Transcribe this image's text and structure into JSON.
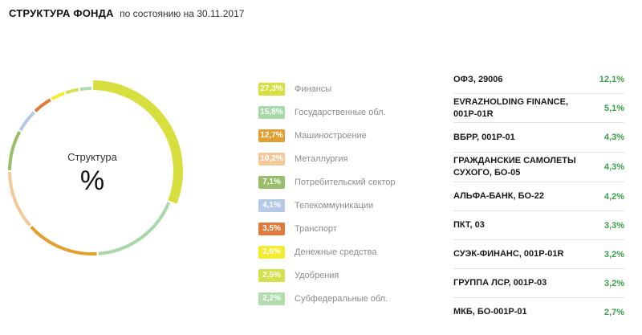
{
  "header": {
    "title": "СТРУКТУРА ФОНДА",
    "subtitle": "по состоянию на 30.11.2017"
  },
  "donut": {
    "caption": "Структура",
    "symbol": "%"
  },
  "chart_data": {
    "type": "pie",
    "categories": [
      "Финансы",
      "Государственные обл.",
      "Машиностроение",
      "Металлургия",
      "Потребительский сектор",
      "Телекоммуникации",
      "Транспорт",
      "Денежные средства",
      "Удобрения",
      "Субфедеральные обл."
    ],
    "values": [
      27.3,
      15.8,
      12.7,
      10.2,
      7.1,
      4.1,
      3.5,
      2.6,
      2.5,
      2.2
    ],
    "labels": [
      "27,3%",
      "15,8%",
      "12,7%",
      "10,2%",
      "7,1%",
      "4,1%",
      "3,5%",
      "2,6%",
      "2,5%",
      "2,2%"
    ],
    "colors": [
      "#d6df3e",
      "#a7d8a8",
      "#e3a030",
      "#f3c99a",
      "#97bf69",
      "#b4c8e8",
      "#e0793a",
      "#f4ec2e",
      "#d4e04c",
      "#b0dcae"
    ]
  },
  "holdings": [
    {
      "name": "ОФЗ, 29006",
      "value": "12,1%"
    },
    {
      "name": "EVRAZHOLDING FINANCE, 001P-01R",
      "value": "5,1%"
    },
    {
      "name": "ВБРР, 001P-01",
      "value": "4,3%"
    },
    {
      "name": "ГРАЖДАНСКИЕ САМОЛЕТЫ СУХОГО, БО-05",
      "value": "4,3%"
    },
    {
      "name": "АЛЬФА-БАНК, БО-22",
      "value": "4,2%"
    },
    {
      "name": "ПКТ, 03",
      "value": "3,3%"
    },
    {
      "name": "СУЭК-ФИНАНС, 001P-01R",
      "value": "3,2%"
    },
    {
      "name": "ГРУППА ЛСР, 001P-03",
      "value": "3,2%"
    },
    {
      "name": "МКБ, БО-001P-01",
      "value": "2,7%"
    }
  ]
}
